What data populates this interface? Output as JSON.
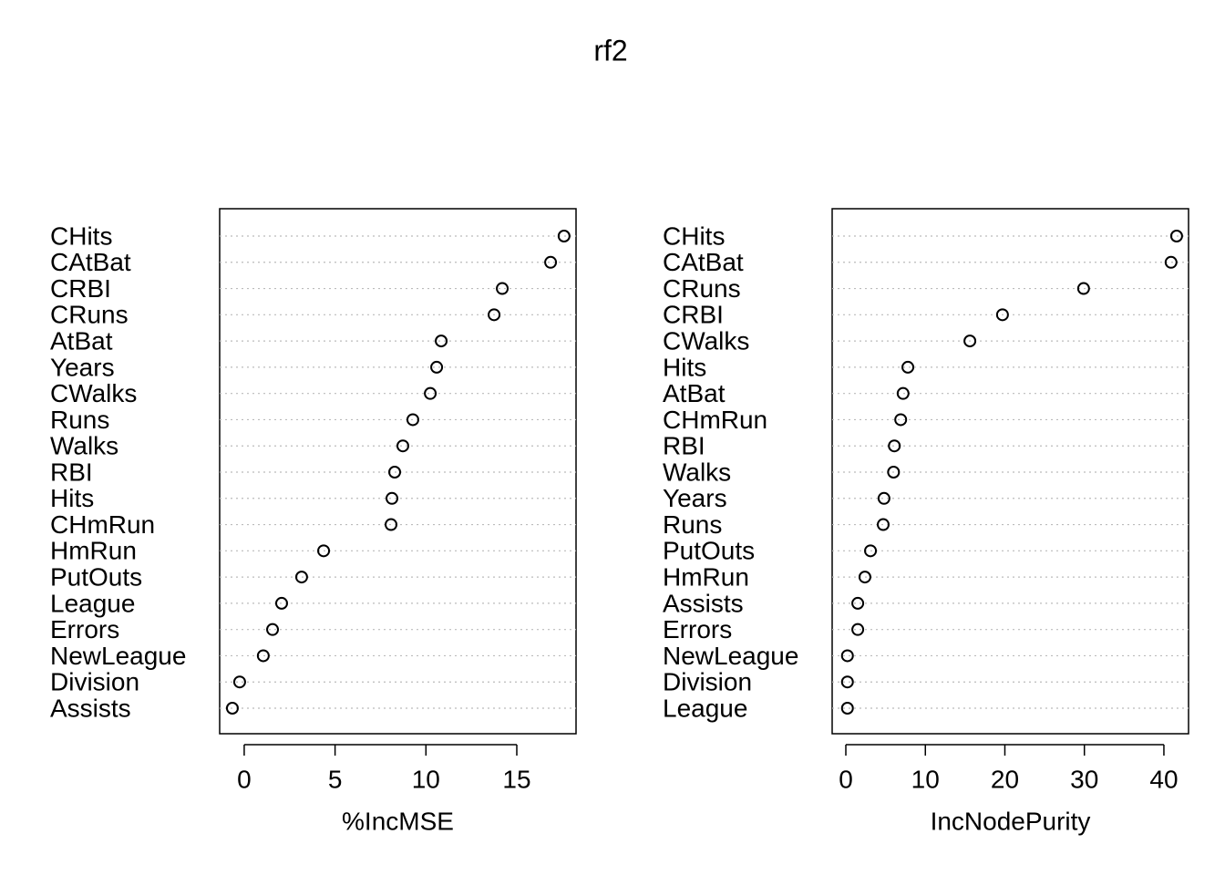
{
  "title": "rf2",
  "chart_data": [
    {
      "type": "dot",
      "xlabel": "%IncMSE",
      "categories": [
        "CHits",
        "CAtBat",
        "CRBI",
        "CRuns",
        "AtBat",
        "Years",
        "CWalks",
        "Runs",
        "Walks",
        "RBI",
        "Hits",
        "CHmRun",
        "HmRun",
        "PutOuts",
        "League",
        "Errors",
        "NewLeague",
        "Division",
        "Assists"
      ],
      "values": [
        17.6,
        16.86,
        14.2,
        13.75,
        10.84,
        10.59,
        10.24,
        9.28,
        8.73,
        8.28,
        8.13,
        8.08,
        4.37,
        3.16,
        2.06,
        1.56,
        1.05,
        -0.25,
        -0.65
      ],
      "xlim": [
        -1.35,
        18.26
      ],
      "xticks": [
        0,
        5,
        10,
        15
      ],
      "grid": true,
      "color": "#000000"
    },
    {
      "type": "dot",
      "xlabel": "IncNodePurity",
      "categories": [
        "CHits",
        "CAtBat",
        "CRuns",
        "CRBI",
        "CWalks",
        "Hits",
        "AtBat",
        "CHmRun",
        "RBI",
        "Walks",
        "Years",
        "Runs",
        "PutOuts",
        "HmRun",
        "Assists",
        "Errors",
        "NewLeague",
        "Division",
        "League"
      ],
      "values": [
        41.6,
        40.9,
        29.9,
        19.7,
        15.6,
        7.8,
        7.2,
        6.9,
        6.1,
        6.0,
        4.8,
        4.7,
        3.1,
        2.4,
        1.5,
        1.5,
        0.2,
        0.2,
        0.2
      ],
      "xlim": [
        -1.72,
        43.1
      ],
      "xticks": [
        0,
        10,
        20,
        30,
        40
      ],
      "grid": true,
      "color": "#000000"
    }
  ]
}
